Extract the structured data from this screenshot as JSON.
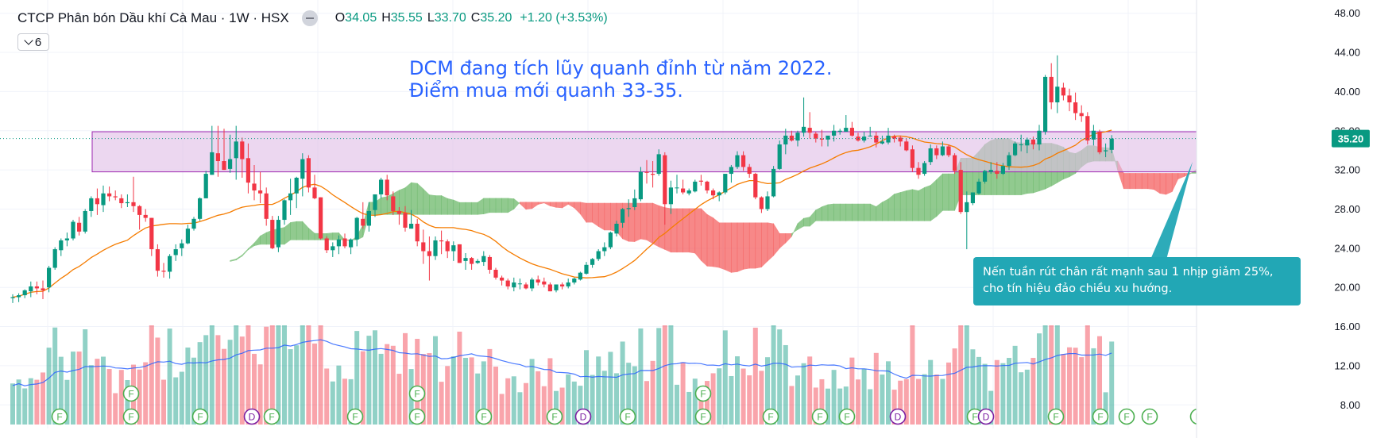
{
  "header": {
    "title": "CTCP Phân bón Dầu khí Cà Mau · 1W · HSX",
    "ohlc": [
      {
        "label": "O",
        "value": "34.05"
      },
      {
        "label": "H",
        "value": "35.55"
      },
      {
        "label": "L",
        "value": "33.70"
      },
      {
        "label": "C",
        "value": "35.20"
      }
    ],
    "change": "+1.20 (+3.53%)",
    "indicator_count": "6"
  },
  "annotations": {
    "top_line1": "DCM đang tích lũy quanh đỉnh từ năm 2022.",
    "top_line2": "Điểm mua mới quanh 33-35.",
    "callout_line1": "Nến tuần rút chân rất mạnh sau 1 nhịp giảm 25%,",
    "callout_line2": "cho tín hiệu đảo chiều xu hướng."
  },
  "colors": {
    "up": "#089981",
    "down": "#f23645",
    "ma": "#f57c00",
    "vol_ma": "#2962ff",
    "cloud_bull": "#67b665",
    "cloud_bear": "#f45b5b",
    "zone_fill": "#e1bee7",
    "zone_stroke": "#9c27b0",
    "price_tag": "#089981",
    "callout": "#22a7b5"
  },
  "chart_data": {
    "type": "candlestick",
    "interval": "1W",
    "ylim": [
      6.4,
      48.3
    ],
    "y_ticks": [
      "48.00",
      "44.00",
      "40.00",
      "36.00",
      "32.00",
      "28.00",
      "24.00",
      "20.00",
      "16.00",
      "12.00",
      "8.00"
    ],
    "last_price": "35.20",
    "zone": [
      31.8,
      35.9
    ],
    "candles": [
      [
        18.9,
        19.3,
        18.4,
        19.0
      ],
      [
        19.0,
        19.4,
        18.5,
        19.2
      ],
      [
        19.2,
        19.8,
        18.9,
        19.7
      ],
      [
        19.6,
        20.6,
        19.0,
        20.1
      ],
      [
        20.1,
        20.6,
        19.3,
        19.9
      ],
      [
        19.9,
        20.7,
        18.8,
        19.7
      ],
      [
        20.0,
        22.2,
        19.5,
        22.0
      ],
      [
        22.0,
        24.1,
        21.8,
        23.9
      ],
      [
        23.8,
        25.0,
        23.2,
        24.8
      ],
      [
        24.8,
        25.6,
        24.2,
        25.0
      ],
      [
        25.0,
        26.9,
        24.8,
        26.7
      ],
      [
        26.6,
        27.2,
        25.3,
        25.7
      ],
      [
        25.7,
        28.0,
        25.5,
        27.8
      ],
      [
        27.8,
        29.3,
        27.2,
        29.1
      ],
      [
        29.1,
        30.1,
        27.4,
        28.5
      ],
      [
        28.4,
        30.4,
        27.7,
        29.6
      ],
      [
        29.6,
        30.3,
        28.8,
        29.3
      ],
      [
        29.3,
        29.9,
        28.9,
        29.2
      ],
      [
        29.1,
        29.5,
        28.1,
        28.6
      ],
      [
        28.6,
        29.5,
        28.2,
        28.7
      ],
      [
        28.7,
        31.3,
        27.7,
        28.3
      ],
      [
        28.3,
        28.4,
        25.9,
        27.4
      ],
      [
        27.4,
        28.0,
        26.7,
        27.1
      ],
      [
        27.1,
        27.1,
        23.2,
        23.9
      ],
      [
        23.9,
        24.4,
        21.1,
        21.7
      ],
      [
        21.7,
        22.5,
        21.0,
        21.6
      ],
      [
        21.6,
        23.4,
        20.9,
        23.2
      ],
      [
        23.3,
        24.4,
        22.7,
        23.9
      ],
      [
        24.0,
        24.9,
        23.2,
        24.5
      ],
      [
        24.5,
        26.4,
        24.4,
        26.0
      ],
      [
        26.0,
        27.2,
        25.8,
        27.0
      ],
      [
        27.0,
        29.2,
        26.8,
        29.1
      ],
      [
        29.1,
        31.9,
        29.1,
        31.6
      ],
      [
        31.5,
        36.5,
        31.5,
        33.8
      ],
      [
        33.7,
        36.5,
        31.3,
        32.9
      ],
      [
        32.9,
        36.2,
        32.0,
        32.0
      ],
      [
        32.1,
        35.6,
        31.7,
        33.1
      ],
      [
        33.2,
        36.5,
        31.0,
        34.9
      ],
      [
        34.9,
        35.3,
        31.2,
        33.1
      ],
      [
        33.2,
        34.7,
        29.6,
        30.7
      ],
      [
        30.6,
        32.5,
        28.9,
        29.9
      ],
      [
        29.9,
        31.8,
        28.6,
        29.6
      ],
      [
        29.6,
        30.2,
        26.3,
        27.0
      ],
      [
        26.9,
        27.3,
        23.9,
        24.0
      ],
      [
        24.1,
        27.3,
        23.6,
        26.9
      ],
      [
        26.9,
        29.0,
        26.4,
        28.9
      ],
      [
        28.9,
        31.1,
        27.4,
        29.6
      ],
      [
        29.6,
        31.3,
        28.1,
        31.2
      ],
      [
        31.1,
        33.7,
        29.3,
        33.1
      ],
      [
        33.2,
        33.5,
        29.7,
        30.2
      ],
      [
        30.2,
        31.5,
        29.0,
        29.1
      ],
      [
        29.2,
        29.2,
        24.9,
        25.0
      ],
      [
        25.0,
        25.2,
        23.5,
        23.8
      ],
      [
        23.8,
        24.6,
        23.1,
        24.2
      ],
      [
        24.2,
        25.3,
        23.4,
        24.9
      ],
      [
        25.0,
        25.5,
        24.0,
        24.2
      ],
      [
        24.1,
        25.0,
        23.4,
        24.9
      ],
      [
        24.9,
        27.2,
        24.2,
        27.1
      ],
      [
        27.0,
        28.7,
        26.0,
        26.3
      ],
      [
        26.3,
        28.7,
        25.7,
        27.8
      ],
      [
        27.9,
        29.5,
        27.2,
        29.5
      ],
      [
        29.5,
        31.2,
        29.1,
        31.0
      ],
      [
        31.0,
        31.5,
        28.9,
        29.4
      ],
      [
        29.3,
        29.8,
        27.4,
        27.8
      ],
      [
        27.8,
        28.2,
        26.4,
        27.5
      ],
      [
        27.6,
        28.3,
        25.7,
        26.1
      ],
      [
        26.0,
        27.9,
        26.0,
        26.5
      ],
      [
        26.5,
        27.0,
        24.2,
        24.7
      ],
      [
        24.6,
        25.9,
        22.4,
        23.7
      ],
      [
        23.7,
        25.2,
        20.7,
        23.2
      ],
      [
        23.2,
        25.2,
        22.8,
        24.8
      ],
      [
        24.8,
        25.8,
        23.4,
        24.7
      ],
      [
        24.7,
        24.9,
        23.0,
        23.7
      ],
      [
        23.7,
        24.7,
        22.7,
        24.3
      ],
      [
        24.4,
        24.4,
        22.5,
        22.5
      ],
      [
        22.7,
        23.5,
        21.8,
        23.0
      ],
      [
        23.0,
        23.1,
        21.8,
        22.4
      ],
      [
        22.5,
        22.9,
        22.4,
        22.7
      ],
      [
        22.6,
        23.7,
        22.2,
        23.2
      ],
      [
        23.1,
        23.3,
        21.4,
        21.8
      ],
      [
        21.8,
        22.0,
        20.8,
        21.0
      ],
      [
        21.0,
        21.2,
        20.2,
        20.7
      ],
      [
        20.7,
        20.9,
        19.8,
        20.1
      ],
      [
        20.0,
        21.0,
        19.6,
        20.5
      ],
      [
        20.4,
        20.9,
        19.8,
        20.4
      ],
      [
        20.3,
        20.5,
        19.8,
        19.9
      ],
      [
        19.9,
        21.0,
        19.6,
        20.8
      ],
      [
        20.8,
        21.2,
        20.2,
        20.5
      ],
      [
        20.6,
        21.0,
        20.0,
        20.3
      ],
      [
        20.3,
        20.5,
        19.6,
        19.6
      ],
      [
        19.7,
        20.3,
        19.5,
        20.3
      ],
      [
        20.3,
        20.5,
        19.8,
        20.1
      ],
      [
        20.1,
        20.9,
        19.9,
        20.5
      ],
      [
        20.5,
        21.0,
        20.3,
        20.9
      ],
      [
        20.8,
        21.6,
        20.7,
        21.5
      ],
      [
        21.4,
        22.6,
        21.3,
        22.3
      ],
      [
        22.3,
        23.0,
        22.0,
        22.9
      ],
      [
        22.9,
        23.9,
        22.7,
        23.7
      ],
      [
        23.7,
        24.6,
        23.2,
        24.1
      ],
      [
        24.1,
        25.7,
        23.9,
        25.6
      ],
      [
        25.5,
        26.8,
        25.2,
        26.5
      ],
      [
        26.6,
        28.1,
        26.1,
        28.0
      ],
      [
        28.0,
        29.0,
        27.2,
        28.1
      ],
      [
        28.2,
        30.0,
        27.9,
        29.1
      ],
      [
        29.0,
        32.3,
        28.8,
        31.8
      ],
      [
        31.8,
        33.0,
        30.6,
        31.7
      ],
      [
        31.6,
        32.9,
        30.2,
        31.5
      ],
      [
        31.6,
        34.1,
        31.4,
        33.6
      ],
      [
        33.5,
        33.8,
        26.4,
        28.5
      ],
      [
        28.5,
        30.9,
        27.5,
        30.2
      ],
      [
        30.2,
        31.5,
        29.6,
        30.2
      ],
      [
        30.1,
        31.0,
        29.5,
        29.7
      ],
      [
        29.6,
        30.1,
        29.4,
        29.9
      ],
      [
        29.8,
        31.0,
        29.7,
        30.8
      ],
      [
        30.9,
        31.5,
        30.4,
        30.8
      ],
      [
        30.8,
        30.9,
        29.6,
        29.9
      ],
      [
        29.9,
        30.1,
        29.0,
        29.4
      ],
      [
        29.4,
        29.8,
        28.8,
        29.7
      ],
      [
        29.7,
        31.6,
        29.5,
        31.6
      ],
      [
        31.6,
        32.5,
        30.7,
        32.3
      ],
      [
        32.3,
        33.9,
        32.1,
        33.5
      ],
      [
        33.5,
        33.9,
        31.9,
        32.3
      ],
      [
        32.3,
        32.6,
        31.2,
        31.6
      ],
      [
        31.6,
        31.7,
        29.0,
        29.2
      ],
      [
        29.2,
        29.3,
        27.6,
        28.0
      ],
      [
        28.0,
        29.8,
        27.8,
        29.3
      ],
      [
        29.3,
        32.4,
        29.2,
        32.1
      ],
      [
        32.1,
        35.0,
        32.0,
        34.6
      ],
      [
        34.6,
        36.2,
        33.6,
        35.5
      ],
      [
        35.5,
        36.0,
        34.9,
        35.0
      ],
      [
        35.0,
        36.0,
        34.4,
        35.8
      ],
      [
        35.8,
        39.4,
        35.4,
        36.4
      ],
      [
        36.3,
        37.9,
        35.2,
        35.8
      ],
      [
        35.7,
        35.9,
        34.8,
        35.2
      ],
      [
        35.2,
        36.1,
        34.4,
        35.1
      ],
      [
        35.1,
        35.5,
        34.4,
        35.5
      ],
      [
        35.5,
        36.6,
        34.9,
        36.0
      ],
      [
        35.9,
        36.2,
        35.6,
        36.0
      ],
      [
        35.9,
        37.6,
        35.9,
        36.3
      ],
      [
        36.3,
        36.9,
        35.4,
        35.5
      ],
      [
        35.4,
        35.8,
        34.9,
        35.0
      ],
      [
        35.0,
        35.9,
        34.8,
        35.4
      ],
      [
        35.5,
        36.4,
        35.4,
        35.5
      ],
      [
        35.5,
        35.9,
        34.3,
        34.8
      ],
      [
        34.7,
        35.5,
        34.6,
        34.9
      ],
      [
        34.8,
        36.3,
        34.6,
        35.5
      ],
      [
        35.4,
        35.6,
        34.8,
        35.2
      ],
      [
        35.3,
        35.5,
        34.4,
        34.9
      ],
      [
        34.9,
        35.2,
        33.9,
        34.0
      ],
      [
        34.1,
        34.5,
        31.8,
        32.2
      ],
      [
        32.2,
        32.8,
        31.1,
        31.5
      ],
      [
        31.6,
        32.9,
        31.4,
        32.7
      ],
      [
        32.8,
        34.6,
        32.5,
        34.2
      ],
      [
        34.2,
        34.5,
        33.1,
        33.5
      ],
      [
        33.5,
        34.9,
        33.4,
        34.4
      ],
      [
        34.4,
        34.6,
        33.3,
        33.5
      ],
      [
        33.5,
        33.7,
        31.6,
        31.9
      ],
      [
        32.0,
        32.8,
        27.5,
        27.7
      ],
      [
        27.7,
        29.8,
        23.9,
        28.7
      ],
      [
        28.6,
        29.7,
        28.4,
        29.7
      ],
      [
        29.6,
        31.1,
        29.5,
        30.8
      ],
      [
        30.8,
        32.0,
        30.6,
        31.9
      ],
      [
        31.8,
        32.8,
        31.6,
        32.0
      ],
      [
        31.9,
        32.8,
        31.1,
        31.6
      ],
      [
        31.6,
        32.7,
        31.5,
        32.4
      ],
      [
        32.4,
        33.8,
        32.0,
        33.5
      ],
      [
        33.5,
        34.9,
        33.4,
        34.7
      ],
      [
        34.6,
        35.6,
        33.9,
        34.6
      ],
      [
        34.5,
        35.3,
        33.7,
        35.1
      ],
      [
        35.1,
        35.4,
        34.1,
        34.6
      ],
      [
        34.6,
        36.6,
        34.0,
        36.0
      ],
      [
        35.9,
        41.7,
        35.6,
        41.5
      ],
      [
        41.5,
        42.9,
        38.2,
        38.9
      ],
      [
        38.9,
        43.7,
        37.8,
        40.5
      ],
      [
        40.4,
        40.9,
        39.1,
        39.6
      ],
      [
        39.6,
        40.3,
        38.0,
        38.9
      ],
      [
        38.9,
        39.9,
        37.1,
        37.8
      ],
      [
        37.8,
        38.6,
        36.9,
        37.5
      ],
      [
        37.5,
        37.9,
        34.6,
        35.0
      ],
      [
        35.1,
        36.6,
        34.5,
        36.0
      ],
      [
        35.9,
        36.1,
        33.6,
        33.8
      ],
      [
        33.9,
        34.7,
        33.3,
        34.0
      ],
      [
        34.05,
        35.55,
        33.7,
        35.2
      ]
    ]
  },
  "markers": [
    "F",
    "F",
    "F",
    "F",
    "D",
    "F",
    "F",
    "F",
    "F",
    "F",
    "F",
    "D",
    "F",
    "F",
    "F",
    "F",
    "F",
    "F",
    "D",
    "F",
    "D",
    "F",
    "F",
    "F",
    "F",
    "F"
  ]
}
